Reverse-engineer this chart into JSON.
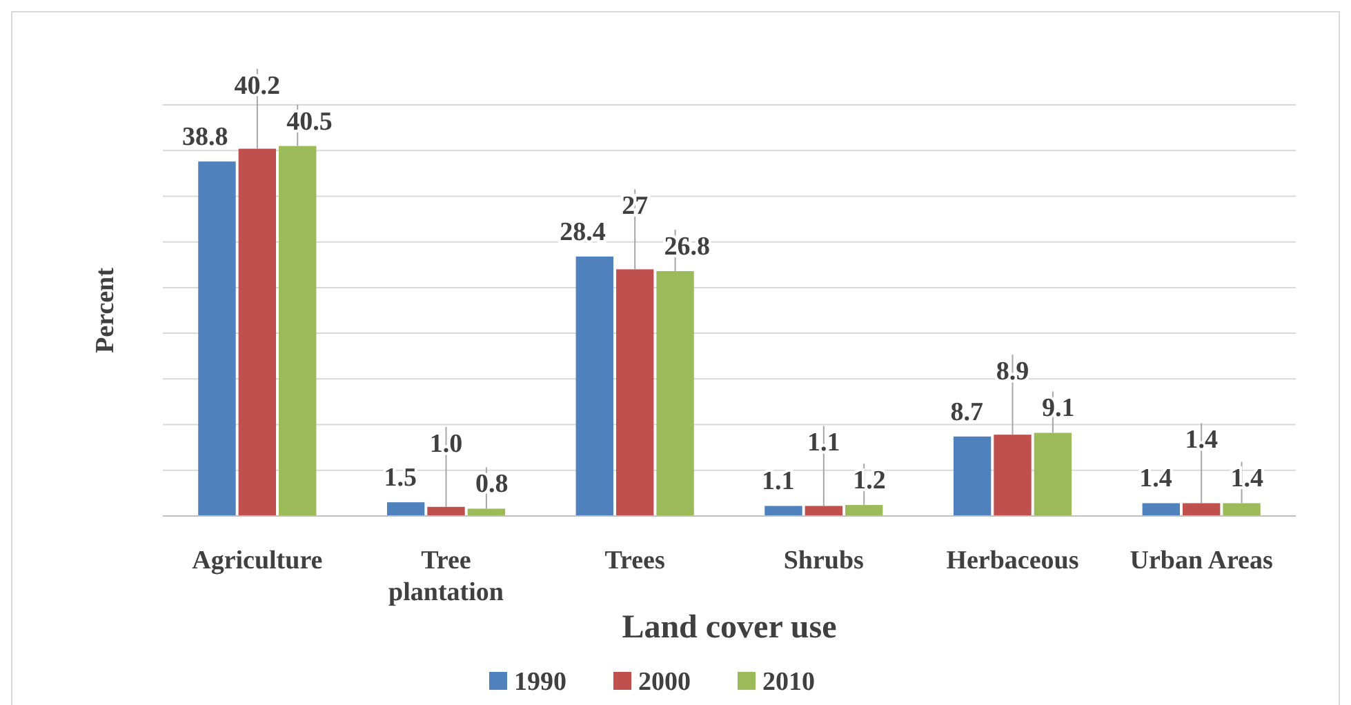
{
  "chart_data": {
    "type": "bar",
    "xlabel": "Land cover use",
    "ylabel": "Percent",
    "categories": [
      "Agriculture",
      "Tree plantation",
      "Trees",
      "Shrubs",
      "Herbaceous",
      "Urban Areas"
    ],
    "series": [
      {
        "name": "1990",
        "color": "#4f81bd",
        "values": [
          38.8,
          1.5,
          28.4,
          1.1,
          8.7,
          1.4
        ],
        "value_labels": [
          "38.8",
          "1.5",
          "28.4",
          "1.1",
          "8.7",
          "1.4"
        ]
      },
      {
        "name": "2000",
        "color": "#c0504d",
        "values": [
          40.2,
          1.0,
          27,
          1.1,
          8.9,
          1.4
        ],
        "value_labels": [
          "40.2",
          "1.0",
          "27",
          "1.1",
          "8.9",
          "1.4"
        ]
      },
      {
        "name": "2010",
        "color": "#9bbb59",
        "values": [
          40.5,
          0.8,
          26.8,
          1.2,
          9.1,
          1.4
        ],
        "value_labels": [
          "40.5",
          "0.8",
          "26.8",
          "1.2",
          "9.1",
          "1.4"
        ]
      }
    ],
    "ylim": [
      0,
      45
    ],
    "yticks": [
      {
        "value": 0,
        "label": null
      },
      {
        "value": 5,
        "label": null
      },
      {
        "value": 10,
        "label": null
      },
      {
        "value": 15,
        "label": null
      },
      {
        "value": 20,
        "label": null
      },
      {
        "value": 25,
        "label": null
      },
      {
        "value": 30,
        "label": null
      },
      {
        "value": 35,
        "label": null
      },
      {
        "value": 40,
        "label": null
      },
      {
        "value": 45,
        "label": null
      }
    ],
    "grid": "y",
    "tick_labels": "x",
    "legend": "bottom"
  }
}
